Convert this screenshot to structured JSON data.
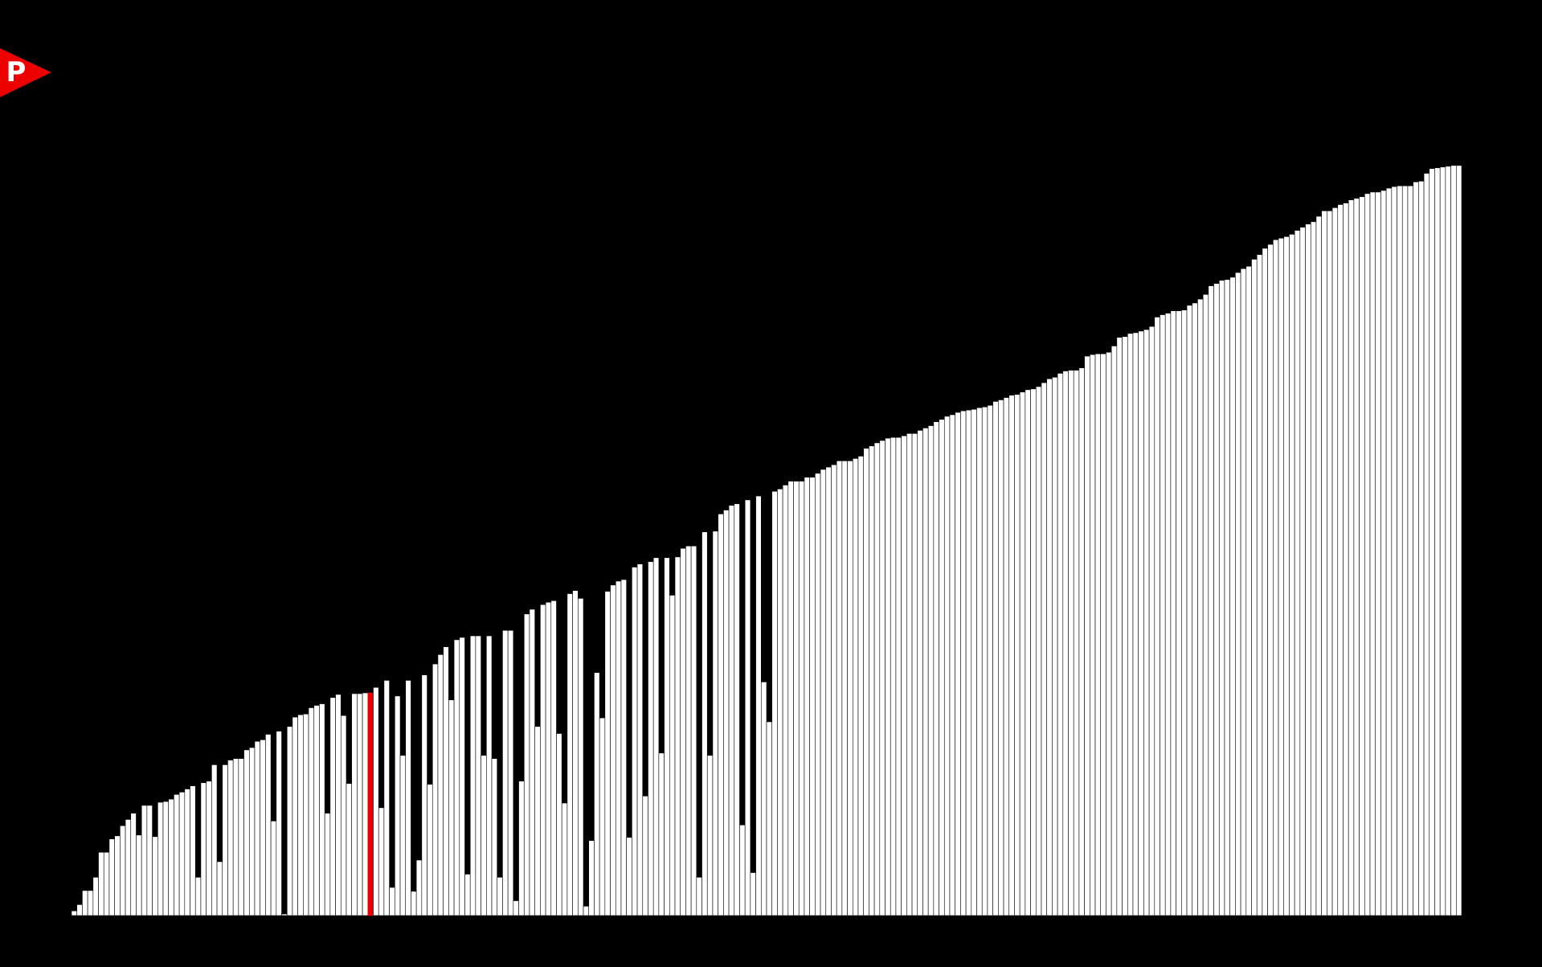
{
  "badge": {
    "letter": "P",
    "icon": "pointer-flag-icon",
    "color": "#ee0000"
  },
  "colors": {
    "background": "#000000",
    "bar_fill": "#ffffff",
    "bar_stroke": "#000000",
    "highlight": "#ee0000"
  },
  "chart_data": {
    "type": "bar",
    "title": "",
    "xlabel": "",
    "ylabel": "",
    "ylim": [
      0,
      100
    ],
    "grid": false,
    "legend": "none",
    "highlight_index": 55,
    "values": [
      0.6,
      1.4,
      3.2,
      3.2,
      4.9,
      8.1,
      8.1,
      9.8,
      10.2,
      11.5,
      12.3,
      13.1,
      10.3,
      14.1,
      14.1,
      10.1,
      14.5,
      14.6,
      14.9,
      15.5,
      15.8,
      16.2,
      16.6,
      4.9,
      17.0,
      17.2,
      19.3,
      6.9,
      19.3,
      19.9,
      20.1,
      20.1,
      21.2,
      21.5,
      22.3,
      22.5,
      23.2,
      12.1,
      23.6,
      0.2,
      24.2,
      25.4,
      25.7,
      25.8,
      26.6,
      26.9,
      27.1,
      13.1,
      27.9,
      28.3,
      25.6,
      16.9,
      28.4,
      28.4,
      28.5,
      28.5,
      29.2,
      13.8,
      30.1,
      3.6,
      28.1,
      20.5,
      30.1,
      3.1,
      7.1,
      30.8,
      16.8,
      32.2,
      33.4,
      34.4,
      27.6,
      35.3,
      35.6,
      5.3,
      35.8,
      35.8,
      20.5,
      35.8,
      20.1,
      4.9,
      36.5,
      36.5,
      1.9,
      17.2,
      38.6,
      39.2,
      24.2,
      39.8,
      40.1,
      40.3,
      23.3,
      14.4,
      41.2,
      41.6,
      40.6,
      1.2,
      9.6,
      31.1,
      25.3,
      41.5,
      42.3,
      42.8,
      43.0,
      10.0,
      44.6,
      45.0,
      15.3,
      45.3,
      45.8,
      20.8,
      45.8,
      41.0,
      45.9,
      47.0,
      47.3,
      47.3,
      4.9,
      49.1,
      20.5,
      49.2,
      51.4,
      51.9,
      52.5,
      52.7,
      11.6,
      53.2,
      5.5,
      53.7,
      29.9,
      24.8,
      54.3,
      54.6,
      55.1,
      55.6,
      55.6,
      55.6,
      56.1,
      56.1,
      56.6,
      57.1,
      57.4,
      57.7,
      58.2,
      58.2,
      58.2,
      58.5,
      58.8,
      59.8,
      60.1,
      60.5,
      60.8,
      61.1,
      61.2,
      61.2,
      61.4,
      61.7,
      61.7,
      62.1,
      62.4,
      62.7,
      63.2,
      63.5,
      63.9,
      64.1,
      64.4,
      64.6,
      64.7,
      64.8,
      65.0,
      65.1,
      65.3,
      65.8,
      66.0,
      66.3,
      66.6,
      66.7,
      67.0,
      67.3,
      67.4,
      67.7,
      68.2,
      68.7,
      68.9,
      69.4,
      69.7,
      69.8,
      69.8,
      70.1,
      71.6,
      71.8,
      71.9,
      71.9,
      72.1,
      72.9,
      74.0,
      74.1,
      74.5,
      74.6,
      74.8,
      75.0,
      75.4,
      76.6,
      76.9,
      77.1,
      77.4,
      77.4,
      77.5,
      78.1,
      78.4,
      78.9,
      79.5,
      80.6,
      80.9,
      81.3,
      81.4,
      81.7,
      82.3,
      82.8,
      83.1,
      84.0,
      84.6,
      85.4,
      85.9,
      86.5,
      86.7,
      86.9,
      87.2,
      87.7,
      88.1,
      88.5,
      88.8,
      89.5,
      90.2,
      90.2,
      90.6,
      91.0,
      91.2,
      91.6,
      91.8,
      92.0,
      92.4,
      92.6,
      92.6,
      92.8,
      93.1,
      93.3,
      93.4,
      93.4,
      93.4,
      93.9,
      94.0,
      95.0,
      95.6,
      95.7,
      95.8,
      95.9,
      96.0,
      96.0
    ]
  }
}
